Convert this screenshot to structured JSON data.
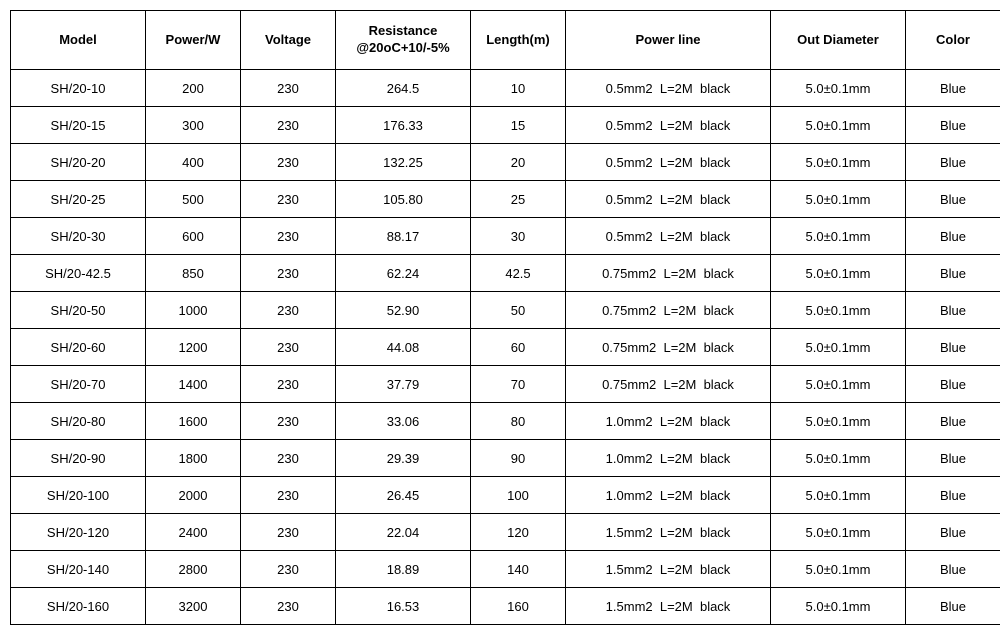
{
  "table": {
    "columns": [
      "Model",
      "Power/W",
      "Voltage",
      "Resistance\n@20oC+10/-5%",
      "Length(m)",
      "Power line",
      "Out Diameter",
      "Color"
    ],
    "col_classes": [
      "col-model",
      "col-power",
      "col-voltage",
      "col-resistance",
      "col-length",
      "col-powerline",
      "col-outdiam",
      "col-color"
    ],
    "rows": [
      [
        "SH/20-10",
        "200",
        "230",
        "264.5",
        "10",
        "0.5mm2  L=2M  black",
        "5.0±0.1mm",
        "Blue"
      ],
      [
        "SH/20-15",
        "300",
        "230",
        "176.33",
        "15",
        "0.5mm2  L=2M  black",
        "5.0±0.1mm",
        "Blue"
      ],
      [
        "SH/20-20",
        "400",
        "230",
        "132.25",
        "20",
        "0.5mm2  L=2M  black",
        "5.0±0.1mm",
        "Blue"
      ],
      [
        "SH/20-25",
        "500",
        "230",
        "105.80",
        "25",
        "0.5mm2  L=2M  black",
        "5.0±0.1mm",
        "Blue"
      ],
      [
        "SH/20-30",
        "600",
        "230",
        "88.17",
        "30",
        "0.5mm2  L=2M  black",
        "5.0±0.1mm",
        "Blue"
      ],
      [
        "SH/20-42.5",
        "850",
        "230",
        "62.24",
        "42.5",
        "0.75mm2  L=2M  black",
        "5.0±0.1mm",
        "Blue"
      ],
      [
        "SH/20-50",
        "1000",
        "230",
        "52.90",
        "50",
        "0.75mm2  L=2M  black",
        "5.0±0.1mm",
        "Blue"
      ],
      [
        "SH/20-60",
        "1200",
        "230",
        "44.08",
        "60",
        "0.75mm2  L=2M  black",
        "5.0±0.1mm",
        "Blue"
      ],
      [
        "SH/20-70",
        "1400",
        "230",
        "37.79",
        "70",
        "0.75mm2  L=2M  black",
        "5.0±0.1mm",
        "Blue"
      ],
      [
        "SH/20-80",
        "1600",
        "230",
        "33.06",
        "80",
        "1.0mm2  L=2M  black",
        "5.0±0.1mm",
        "Blue"
      ],
      [
        "SH/20-90",
        "1800",
        "230",
        "29.39",
        "90",
        "1.0mm2  L=2M  black",
        "5.0±0.1mm",
        "Blue"
      ],
      [
        "SH/20-100",
        "2000",
        "230",
        "26.45",
        "100",
        "1.0mm2  L=2M  black",
        "5.0±0.1mm",
        "Blue"
      ],
      [
        "SH/20-120",
        "2400",
        "230",
        "22.04",
        "120",
        "1.5mm2  L=2M  black",
        "5.0±0.1mm",
        "Blue"
      ],
      [
        "SH/20-140",
        "2800",
        "230",
        "18.89",
        "140",
        "1.5mm2  L=2M  black",
        "5.0±0.1mm",
        "Blue"
      ],
      [
        "SH/20-160",
        "3200",
        "230",
        "16.53",
        "160",
        "1.5mm2  L=2M  black",
        "5.0±0.1mm",
        "Blue"
      ]
    ],
    "border_color": "#000000",
    "background_color": "#ffffff",
    "text_color": "#000000",
    "header_fontsize": 13,
    "body_fontsize": 13,
    "font_family": "Arial"
  }
}
